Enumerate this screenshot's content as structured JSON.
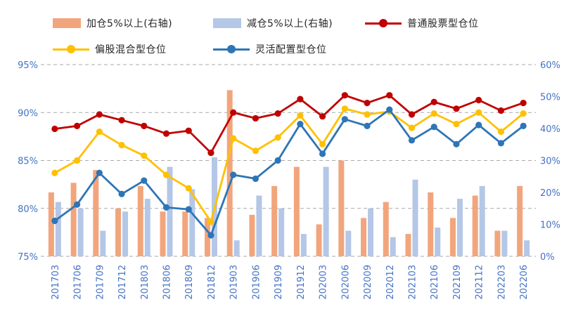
{
  "colors": {
    "grid": "#A9A9A9",
    "axis_label": "#4472C4",
    "legend_text": "#262626",
    "background": "#FFFFFF"
  },
  "chart_data": {
    "type": "combo_bar_line",
    "title": "",
    "legend_position": "top",
    "grid": "dashed-horizontal",
    "categories": [
      "201703",
      "201706",
      "201709",
      "201712",
      "201803",
      "201806",
      "201809",
      "201812",
      "201903",
      "201906",
      "201909",
      "201912",
      "202003",
      "202006",
      "202009",
      "202012",
      "202103",
      "202106",
      "202109",
      "202112",
      "202203",
      "202206"
    ],
    "left_axis": {
      "min": 75,
      "max": 95,
      "ticks": [
        "95%",
        "90%",
        "85%",
        "80%",
        "75%"
      ],
      "tick_values": [
        95,
        90,
        85,
        80,
        75
      ]
    },
    "right_axis": {
      "min": 0,
      "max": 60,
      "ticks": [
        "60%",
        "50%",
        "40%",
        "30%",
        "20%",
        "10%",
        "0%"
      ],
      "tick_values": [
        60,
        50,
        40,
        30,
        20,
        10,
        0
      ]
    },
    "series": [
      {
        "name": "加仓5%以上(右轴)",
        "type": "bar",
        "axis": "right",
        "color": "#F2A57C",
        "values": [
          20,
          23,
          27,
          15,
          22,
          14,
          14,
          12,
          52,
          13,
          22,
          28,
          10,
          30,
          12,
          17,
          7,
          20,
          12,
          19,
          8,
          22
        ]
      },
      {
        "name": "减仓5%以上(右轴)",
        "type": "bar",
        "axis": "right",
        "color": "#B4C7E7",
        "values": [
          17,
          15,
          8,
          14,
          18,
          28,
          21,
          31,
          5,
          19,
          15,
          7,
          28,
          8,
          15,
          6,
          24,
          9,
          18,
          22,
          8,
          5
        ]
      },
      {
        "name": "普通股票型仓位",
        "type": "line",
        "axis": "left",
        "color": "#C00000",
        "values": [
          88.3,
          88.6,
          89.8,
          89.2,
          88.6,
          87.8,
          88.1,
          85.8,
          90.0,
          89.4,
          89.9,
          91.4,
          89.6,
          91.8,
          91.0,
          91.8,
          89.8,
          91.1,
          90.4,
          91.3,
          90.2,
          91.0
        ]
      },
      {
        "name": "偏股混合型仓位",
        "type": "line",
        "axis": "left",
        "color": "#FFC000",
        "values": [
          83.7,
          85.0,
          88.0,
          86.6,
          85.5,
          83.5,
          82.1,
          78.6,
          87.3,
          86.0,
          87.4,
          89.7,
          86.7,
          90.4,
          89.8,
          90.1,
          88.4,
          89.9,
          88.8,
          90.0,
          88.0,
          89.9
        ]
      },
      {
        "name": "灵活配置型仓位",
        "type": "line",
        "axis": "left",
        "color": "#2E75B6",
        "values": [
          78.7,
          80.4,
          83.7,
          81.5,
          82.9,
          80.1,
          79.9,
          77.2,
          83.5,
          83.1,
          85.0,
          88.8,
          85.7,
          89.3,
          88.6,
          90.3,
          87.1,
          88.5,
          86.7,
          88.7,
          86.8,
          88.6
        ]
      }
    ]
  }
}
